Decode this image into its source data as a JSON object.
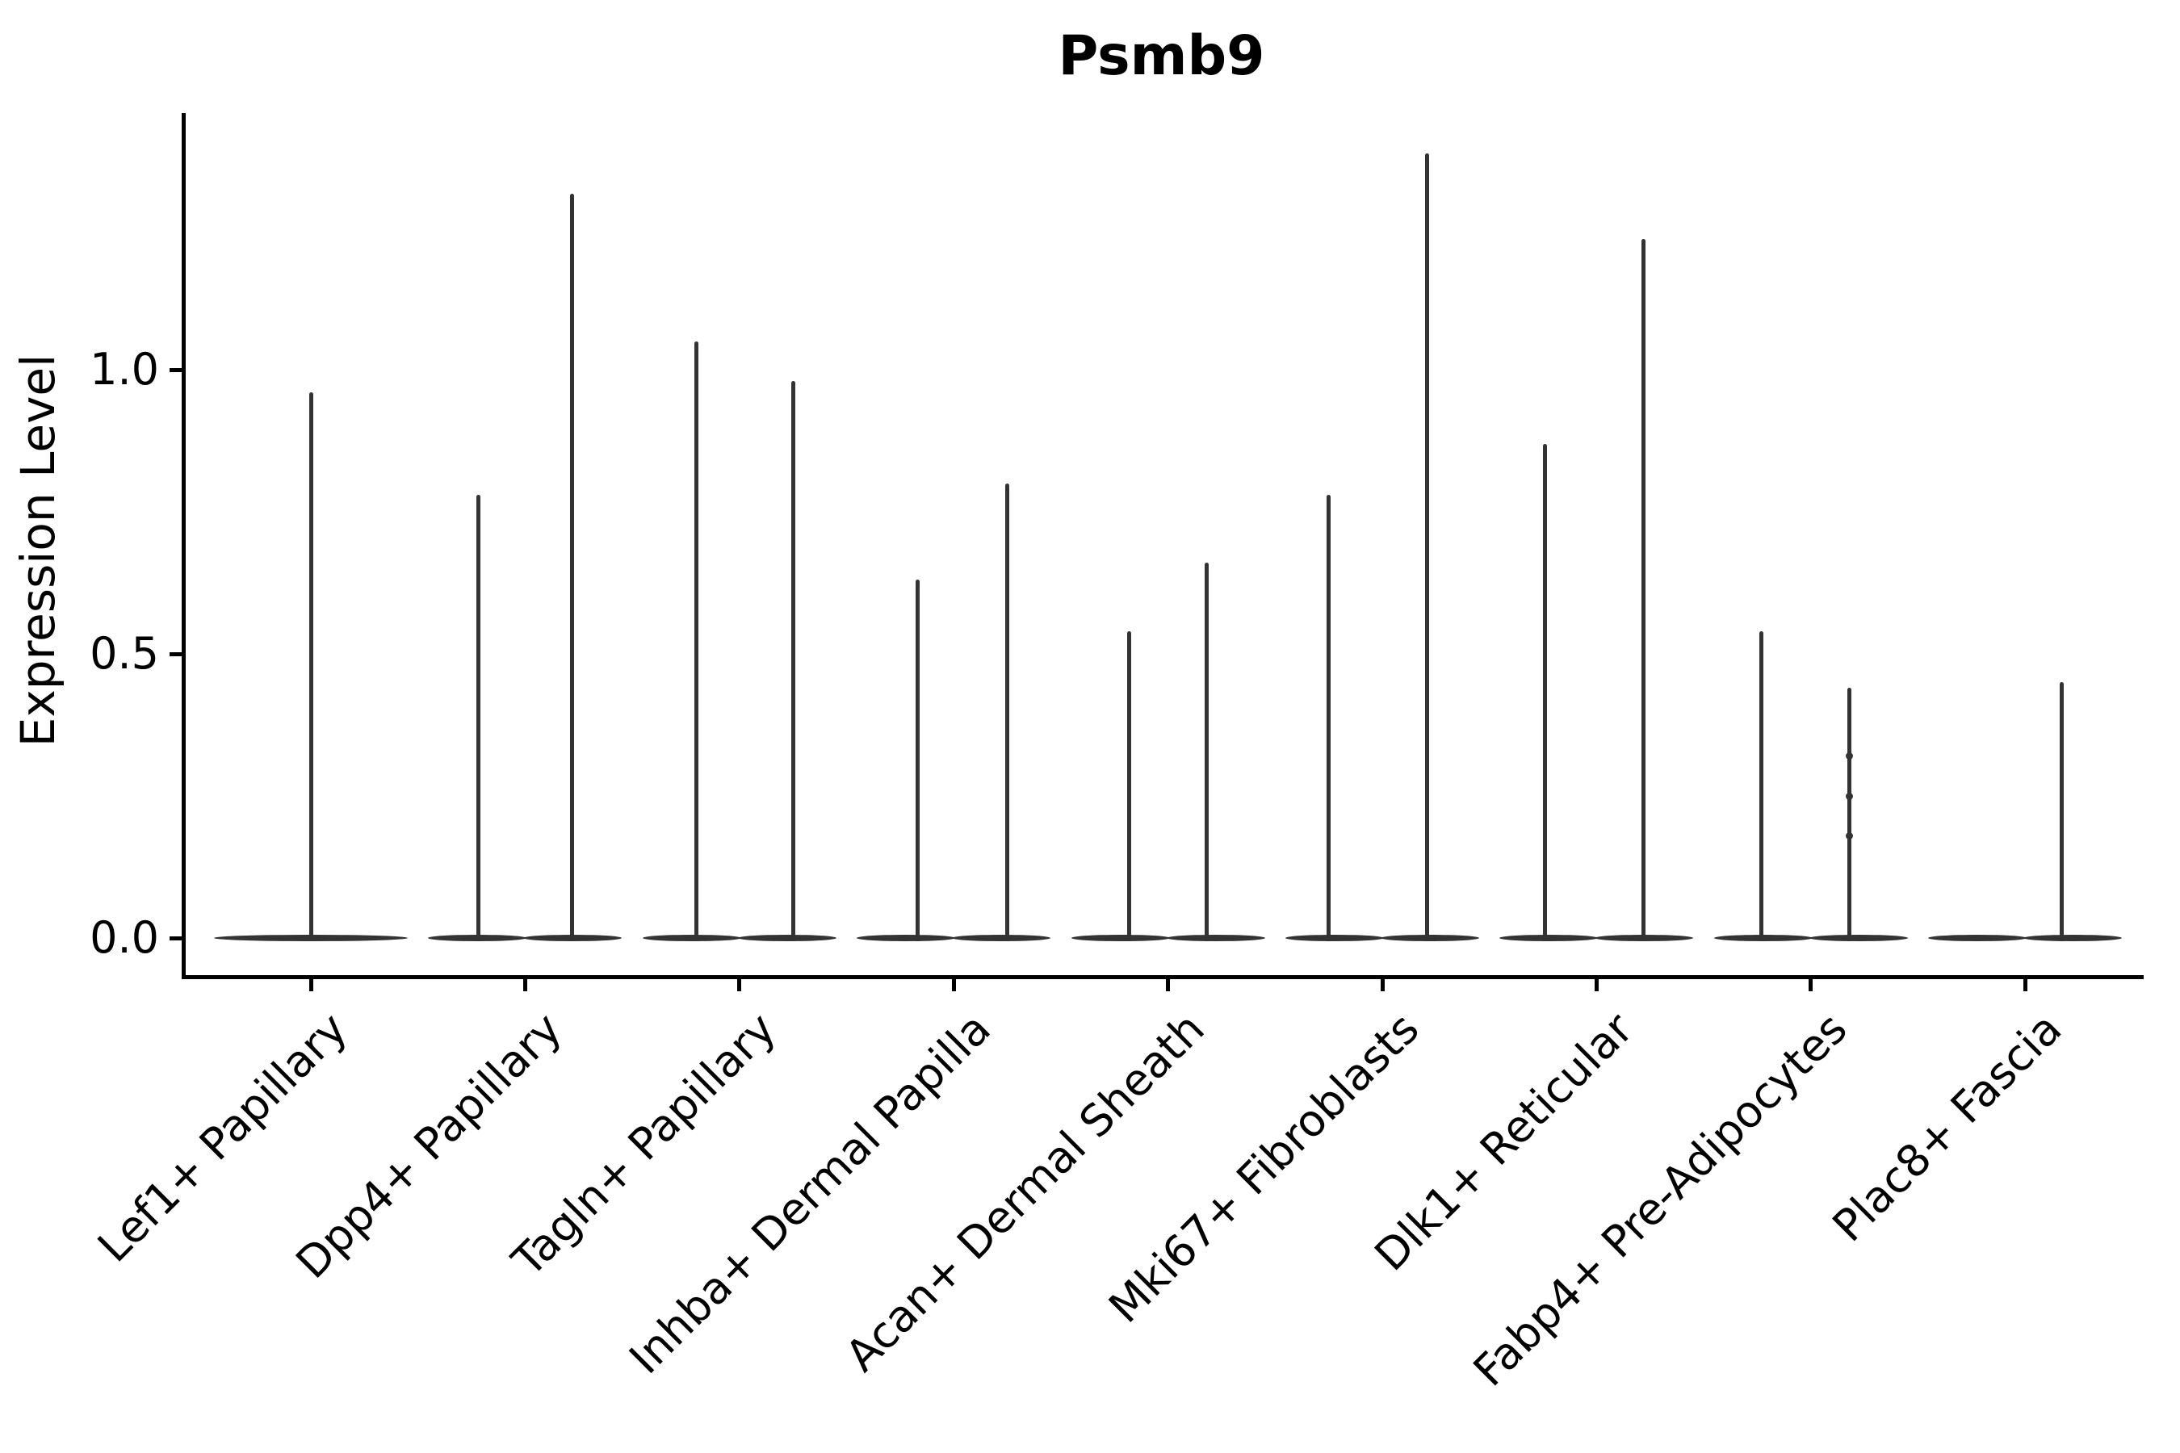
{
  "figure": {
    "title": "Psmb9",
    "ylabel": "Expression Level"
  },
  "colors": {
    "violin": "#333333",
    "axis": "#000000",
    "text": "#000000",
    "background": "#ffffff"
  },
  "chart_data": {
    "type": "violin",
    "title": "Psmb9",
    "xlabel": "",
    "ylabel": "Expression Level",
    "yticks": [
      {
        "value": 0.0,
        "label": "0.0"
      },
      {
        "value": 0.5,
        "label": "0.5"
      },
      {
        "value": 1.0,
        "label": "1.0"
      }
    ],
    "ylim": [
      -0.07,
      1.45
    ],
    "grid": false,
    "legend": "none",
    "baseline_value": 0.0,
    "categories": [
      "Lef1+ Papillary",
      "Dpp4+ Papillary",
      "Tagln+ Papillary",
      "Inhba+ Dermal Papilla",
      "Acan+ Dermal Sheath",
      "Mki67+ Fibroblasts",
      "Dlk1+ Reticular",
      "Fabp4+ Pre-Adipocytes",
      "Plac8+ Fascia"
    ],
    "violins": [
      {
        "category": "Lef1+ Papillary",
        "full_width_single": true,
        "tails": [
          {
            "offset": 0.0,
            "max": 0.96
          }
        ],
        "points": []
      },
      {
        "category": "Dpp4+ Papillary",
        "full_width_single": false,
        "tails": [
          {
            "offset": -0.22,
            "max": 0.78
          },
          {
            "offset": 0.22,
            "max": 1.31
          }
        ],
        "points": []
      },
      {
        "category": "Tagln+ Papillary",
        "full_width_single": false,
        "tails": [
          {
            "offset": -0.2,
            "max": 1.05
          },
          {
            "offset": 0.25,
            "max": 0.98
          }
        ],
        "points": []
      },
      {
        "category": "Inhba+ Dermal Papilla",
        "full_width_single": false,
        "tails": [
          {
            "offset": -0.17,
            "max": 0.63
          },
          {
            "offset": 0.25,
            "max": 0.8
          }
        ],
        "points": []
      },
      {
        "category": "Acan+ Dermal Sheath",
        "full_width_single": false,
        "tails": [
          {
            "offset": -0.18,
            "max": 0.54
          },
          {
            "offset": 0.18,
            "max": 0.66
          }
        ],
        "points": []
      },
      {
        "category": "Mki67+ Fibroblasts",
        "full_width_single": false,
        "tails": [
          {
            "offset": -0.25,
            "max": 0.78
          },
          {
            "offset": 0.21,
            "max": 1.38
          }
        ],
        "points": []
      },
      {
        "category": "Dlk1+ Reticular",
        "full_width_single": false,
        "tails": [
          {
            "offset": -0.24,
            "max": 0.87
          },
          {
            "offset": 0.22,
            "max": 1.23
          }
        ],
        "points": []
      },
      {
        "category": "Fabp4+ Pre-Adipocytes",
        "full_width_single": false,
        "tails": [
          {
            "offset": -0.23,
            "max": 0.54
          },
          {
            "offset": 0.18,
            "max": 0.44
          }
        ],
        "points": [
          {
            "offset": 0.18,
            "value": 0.32
          },
          {
            "offset": 0.18,
            "value": 0.25
          },
          {
            "offset": 0.18,
            "value": 0.18
          }
        ]
      },
      {
        "category": "Plac8+ Fascia",
        "full_width_single": false,
        "tails": [
          {
            "offset": 0.17,
            "max": 0.45
          }
        ],
        "points": []
      }
    ]
  }
}
